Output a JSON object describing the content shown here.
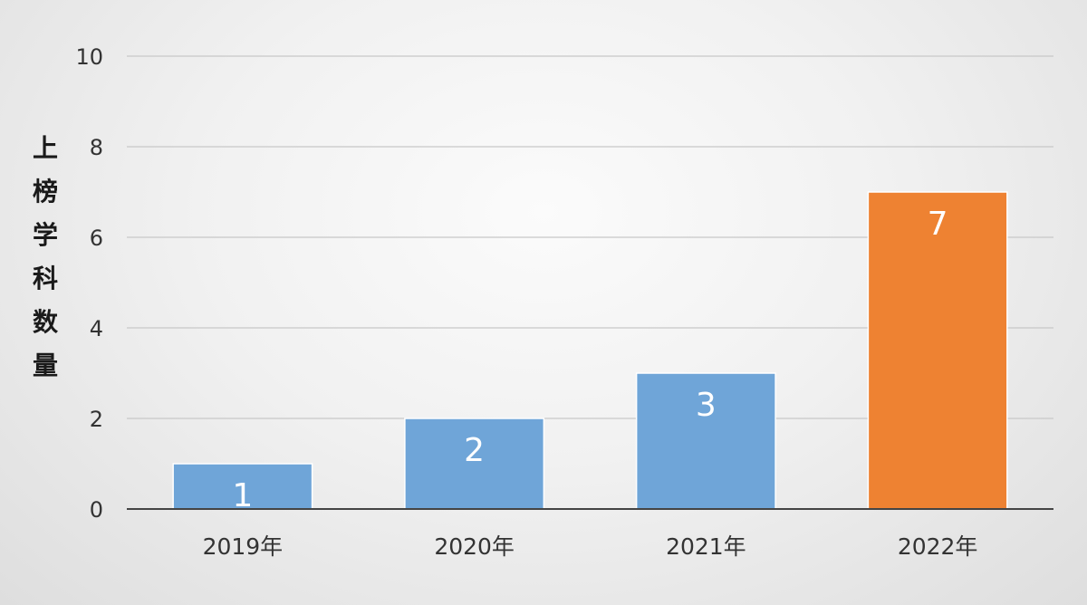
{
  "chart_data": {
    "type": "bar",
    "title": "",
    "xlabel": "",
    "ylabel": "上榜学科数量",
    "categories": [
      "2019年",
      "2020年",
      "2021年",
      "2022年"
    ],
    "values": [
      1,
      2,
      3,
      7
    ],
    "data_labels": [
      "1",
      "2",
      "3",
      "7"
    ],
    "y_ticks": [
      "0",
      "2",
      "4",
      "6",
      "8",
      "10"
    ],
    "ylim": [
      0,
      10
    ],
    "grid": true,
    "legend": "none",
    "colors": {
      "default_bar": "#6fa5d8",
      "highlight_bar": "#ee8232",
      "gridline": "#c8c8c8",
      "axis_text": "#333333",
      "data_label": "#ffffff"
    },
    "highlight_index": 3
  }
}
